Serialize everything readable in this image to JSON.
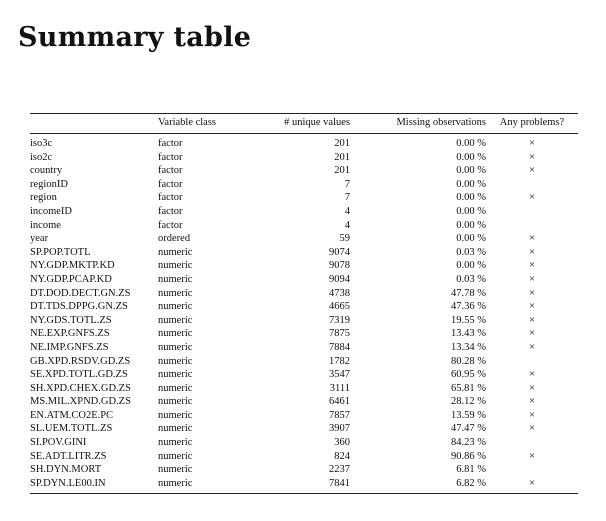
{
  "title": "Summary table",
  "headers": {
    "variable": "",
    "variable_class": "Variable class",
    "unique_values": "# unique values",
    "missing_observations": "Missing observations",
    "any_problems": "Any problems?"
  },
  "problem_mark": "×",
  "rows": [
    {
      "variable": "iso3c",
      "class": "factor",
      "unique": "201",
      "missing": "0.00 %",
      "problem": true
    },
    {
      "variable": "iso2c",
      "class": "factor",
      "unique": "201",
      "missing": "0.00 %",
      "problem": true
    },
    {
      "variable": "country",
      "class": "factor",
      "unique": "201",
      "missing": "0.00 %",
      "problem": true
    },
    {
      "variable": "regionID",
      "class": "factor",
      "unique": "7",
      "missing": "0.00 %",
      "problem": false
    },
    {
      "variable": "region",
      "class": "factor",
      "unique": "7",
      "missing": "0.00 %",
      "problem": true
    },
    {
      "variable": "incomeID",
      "class": "factor",
      "unique": "4",
      "missing": "0.00 %",
      "problem": false
    },
    {
      "variable": "income",
      "class": "factor",
      "unique": "4",
      "missing": "0.00 %",
      "problem": false
    },
    {
      "variable": "year",
      "class": "ordered",
      "unique": "59",
      "missing": "0.00 %",
      "problem": true
    },
    {
      "variable": "SP.POP.TOTL",
      "class": "numeric",
      "unique": "9074",
      "missing": "0.03 %",
      "problem": true
    },
    {
      "variable": "NY.GDP.MKTP.KD",
      "class": "numeric",
      "unique": "9078",
      "missing": "0.00 %",
      "problem": true
    },
    {
      "variable": "NY.GDP.PCAP.KD",
      "class": "numeric",
      "unique": "9094",
      "missing": "0.03 %",
      "problem": true
    },
    {
      "variable": "DT.DOD.DECT.GN.ZS",
      "class": "numeric",
      "unique": "4738",
      "missing": "47.78 %",
      "problem": true
    },
    {
      "variable": "DT.TDS.DPPG.GN.ZS",
      "class": "numeric",
      "unique": "4665",
      "missing": "47.36 %",
      "problem": true
    },
    {
      "variable": "NY.GDS.TOTL.ZS",
      "class": "numeric",
      "unique": "7319",
      "missing": "19.55 %",
      "problem": true
    },
    {
      "variable": "NE.EXP.GNFS.ZS",
      "class": "numeric",
      "unique": "7875",
      "missing": "13.43 %",
      "problem": true
    },
    {
      "variable": "NE.IMP.GNFS.ZS",
      "class": "numeric",
      "unique": "7884",
      "missing": "13.34 %",
      "problem": true
    },
    {
      "variable": "GB.XPD.RSDV.GD.ZS",
      "class": "numeric",
      "unique": "1782",
      "missing": "80.28 %",
      "problem": false
    },
    {
      "variable": "SE.XPD.TOTL.GD.ZS",
      "class": "numeric",
      "unique": "3547",
      "missing": "60.95 %",
      "problem": true
    },
    {
      "variable": "SH.XPD.CHEX.GD.ZS",
      "class": "numeric",
      "unique": "3111",
      "missing": "65.81 %",
      "problem": true
    },
    {
      "variable": "MS.MIL.XPND.GD.ZS",
      "class": "numeric",
      "unique": "6461",
      "missing": "28.12 %",
      "problem": true
    },
    {
      "variable": "EN.ATM.CO2E.PC",
      "class": "numeric",
      "unique": "7857",
      "missing": "13.59 %",
      "problem": true
    },
    {
      "variable": "SL.UEM.TOTL.ZS",
      "class": "numeric",
      "unique": "3907",
      "missing": "47.47 %",
      "problem": true
    },
    {
      "variable": "SI.POV.GINI",
      "class": "numeric",
      "unique": "360",
      "missing": "84.23 %",
      "problem": false
    },
    {
      "variable": "SE.ADT.LITR.ZS",
      "class": "numeric",
      "unique": "824",
      "missing": "90.86 %",
      "problem": true
    },
    {
      "variable": "SH.DYN.MORT",
      "class": "numeric",
      "unique": "2237",
      "missing": "6.81 %",
      "problem": false
    },
    {
      "variable": "SP.DYN.LE00.IN",
      "class": "numeric",
      "unique": "7841",
      "missing": "6.82 %",
      "problem": true
    }
  ]
}
